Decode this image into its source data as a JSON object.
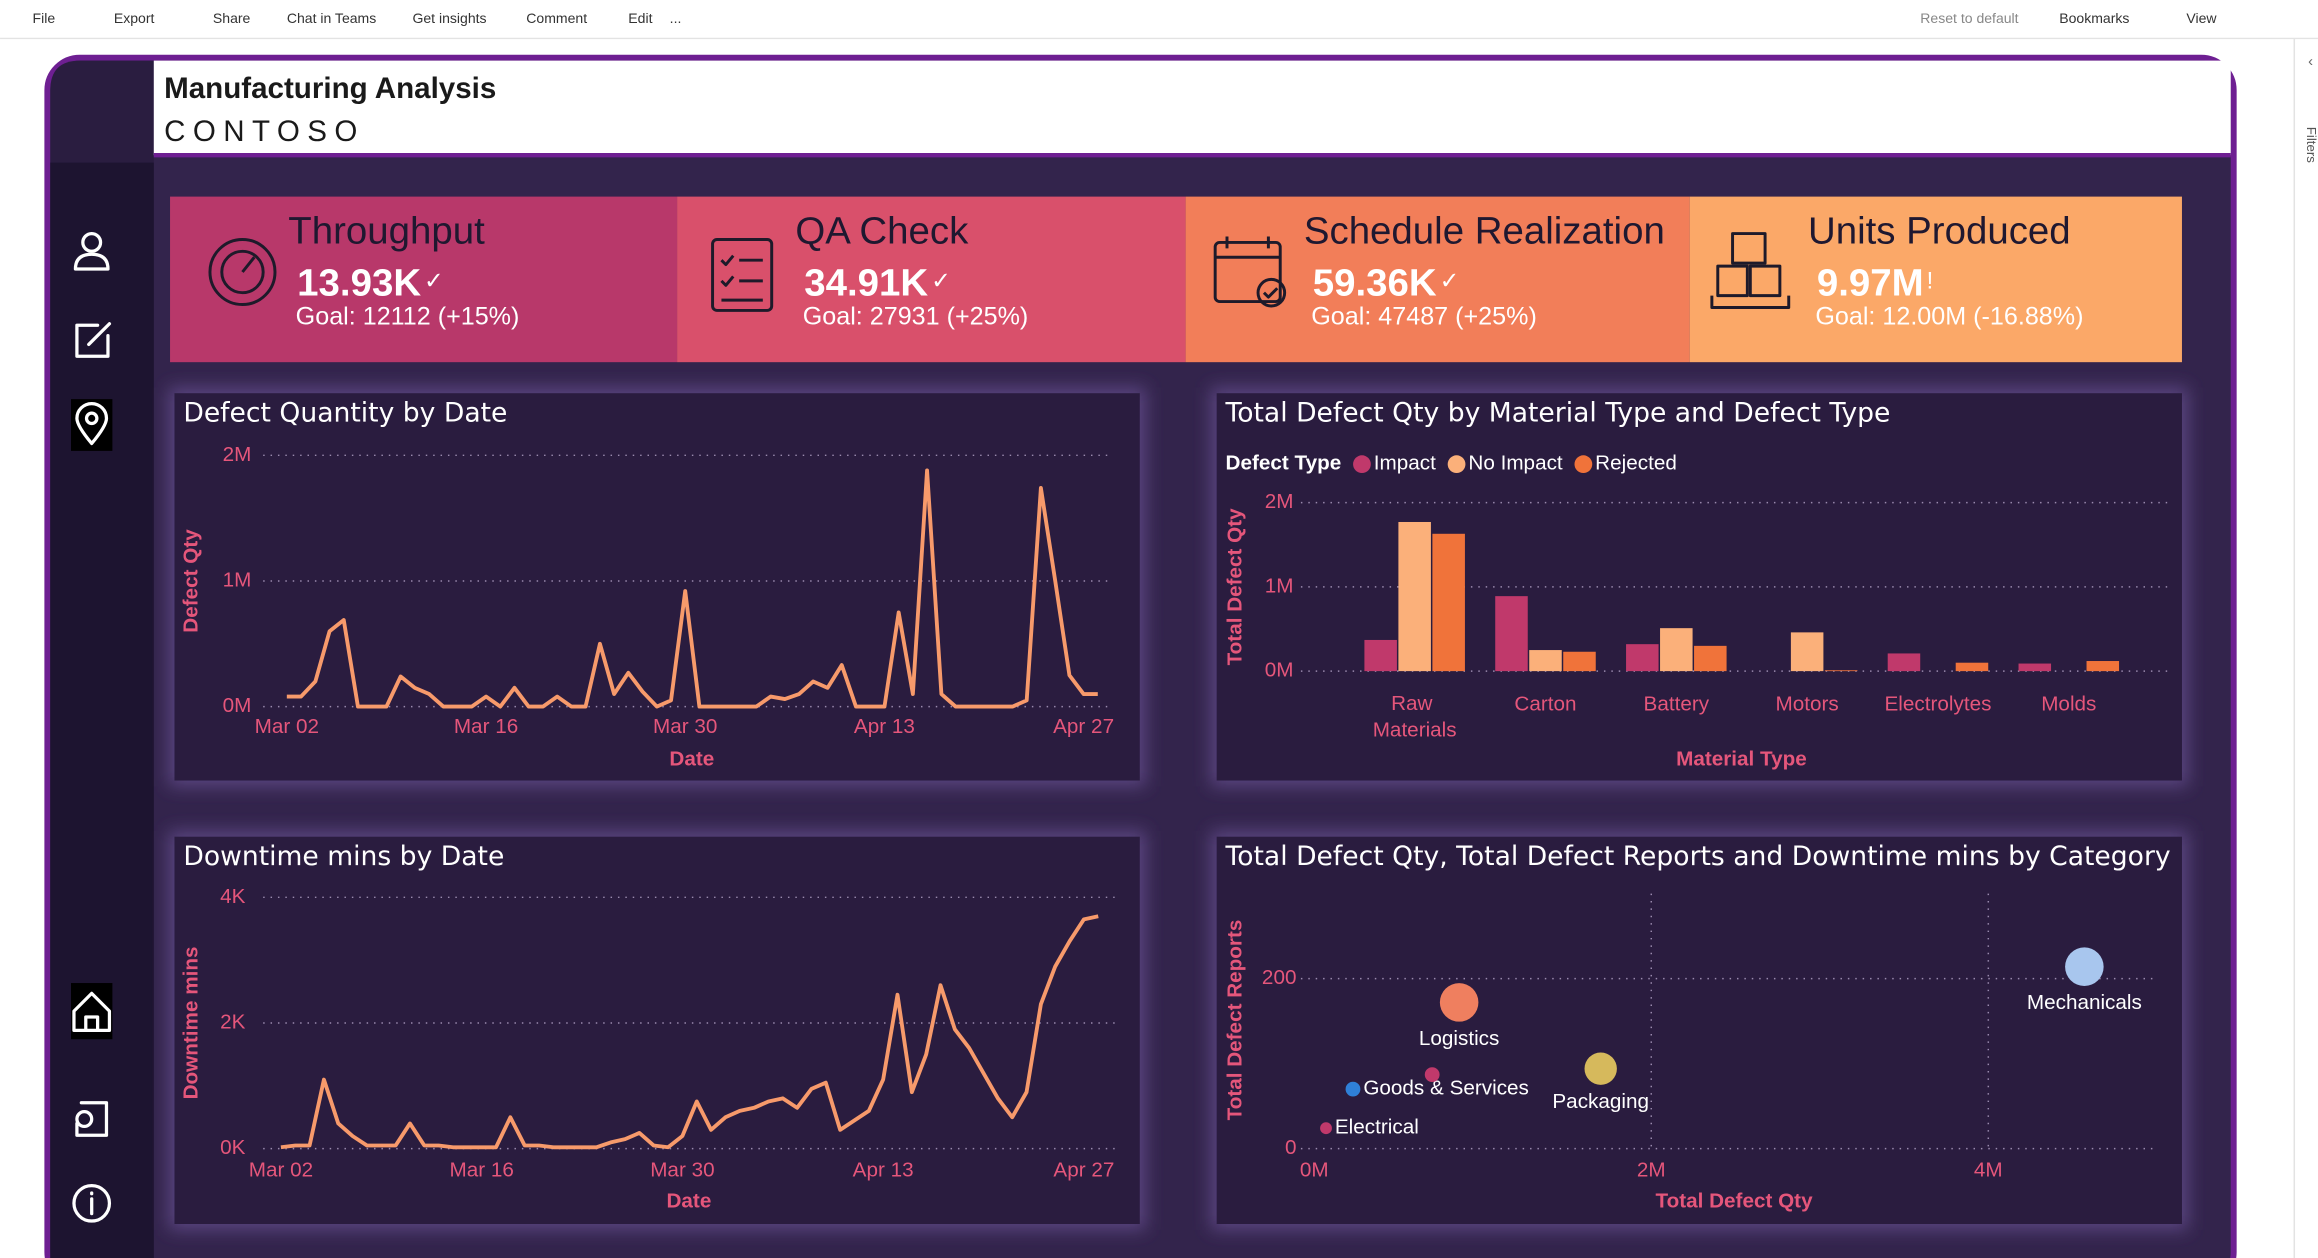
{
  "toolbar": {
    "left": [
      "File",
      "Export",
      "Share",
      "Chat in Teams",
      "Get insights",
      "Comment",
      "Edit",
      "..."
    ],
    "right": [
      "Reset to default",
      "Bookmarks",
      "View"
    ]
  },
  "side_pane": "Filters",
  "header": {
    "title": "Manufacturing Analysis",
    "subtitle": "CONTOSO"
  },
  "kpis": [
    {
      "name": "Throughput",
      "value": "13.93K",
      "status": "✓",
      "goal": "Goal: 12112 (+15%)",
      "color": "#b8386a"
    },
    {
      "name": "QA Check",
      "value": "34.91K",
      "status": "✓",
      "goal": "Goal: 27931 (+25%)",
      "color": "#d9506b"
    },
    {
      "name": "Schedule Realization",
      "value": "59.36K",
      "status": "✓",
      "goal": "Goal: 47487 (+25%)",
      "color": "#f27e59"
    },
    {
      "name": "Units Produced",
      "value": "9.97M",
      "status": "!",
      "goal": "Goal: 12.00M (-16.88%)",
      "color": "#fba868"
    }
  ],
  "chart_data": [
    {
      "type": "line",
      "title": "Defect Quantity by Date",
      "x_label": "Date",
      "y_label": "Defect Qty",
      "categories": [
        "Mar 02",
        null,
        null,
        null,
        null,
        null,
        null,
        null,
        null,
        null,
        null,
        null,
        null,
        null,
        "Mar 16",
        null,
        null,
        null,
        null,
        null,
        null,
        null,
        null,
        null,
        null,
        null,
        null,
        null,
        "Mar 30",
        null,
        null,
        null,
        null,
        null,
        null,
        null,
        null,
        null,
        null,
        null,
        null,
        null,
        "Apr 13",
        null,
        null,
        null,
        null,
        null,
        null,
        null,
        null,
        null,
        null,
        null,
        null,
        null,
        "Apr 27",
        null
      ],
      "values": [
        80000,
        80000,
        200000,
        600000,
        690000,
        0,
        0,
        0,
        240000,
        150000,
        100000,
        0,
        0,
        0,
        80000,
        0,
        150000,
        0,
        0,
        80000,
        0,
        0,
        500000,
        100000,
        270000,
        120000,
        0,
        50000,
        920000,
        0,
        0,
        0,
        0,
        0,
        80000,
        60000,
        100000,
        200000,
        150000,
        330000,
        0,
        0,
        0,
        750000,
        100000,
        1880000,
        100000,
        0,
        0,
        0,
        0,
        0,
        50000,
        1740000,
        1000000,
        250000,
        100000,
        100000
      ],
      "color": "#f79a6b",
      "ylim": [
        0,
        2000000
      ],
      "yticks": [
        {
          "value": 0,
          "label": "0M"
        },
        {
          "value": 1000000,
          "label": "1M"
        },
        {
          "value": 2000000,
          "label": "2M"
        }
      ],
      "grid": true
    },
    {
      "type": "bar",
      "title": "Total Defect Qty by Material Type and Defect Type",
      "x_label": "Material Type",
      "y_label": "Total Defect Qty",
      "legend_title": "Defect Type",
      "legend": "top-left",
      "categories": [
        "Raw Materials",
        "Carton",
        "Battery",
        "Motors",
        "Electrolytes",
        "Molds"
      ],
      "series": [
        {
          "name": "Impact",
          "color": "#c0396b",
          "values": [
            370000,
            890000,
            320000,
            0,
            210000,
            90000
          ]
        },
        {
          "name": "No Impact",
          "color": "#fbb07a",
          "values": [
            1770000,
            250000,
            510000,
            460000,
            0,
            0
          ]
        },
        {
          "name": "Rejected",
          "color": "#f0733a",
          "values": [
            1630000,
            230000,
            300000,
            10000,
            100000,
            120000
          ]
        }
      ],
      "ylim": [
        0,
        2000000
      ],
      "yticks": [
        {
          "value": 0,
          "label": "0M"
        },
        {
          "value": 1000000,
          "label": "1M"
        },
        {
          "value": 2000000,
          "label": "2M"
        }
      ],
      "grid": true
    },
    {
      "type": "line",
      "title": "Downtime mins by Date",
      "x_label": "Date",
      "y_label": "Downtime mins",
      "categories": [
        "Mar 02",
        null,
        null,
        null,
        null,
        null,
        null,
        null,
        null,
        null,
        null,
        null,
        null,
        null,
        "Mar 16",
        null,
        null,
        null,
        null,
        null,
        null,
        null,
        null,
        null,
        null,
        null,
        null,
        null,
        "Mar 30",
        null,
        null,
        null,
        null,
        null,
        null,
        null,
        null,
        null,
        null,
        null,
        null,
        null,
        "Apr 13",
        null,
        null,
        null,
        null,
        null,
        null,
        null,
        null,
        null,
        null,
        null,
        null,
        null,
        "Apr 27",
        null
      ],
      "values": [
        20,
        50,
        50,
        1100,
        400,
        200,
        50,
        50,
        50,
        400,
        50,
        50,
        20,
        20,
        20,
        20,
        500,
        50,
        50,
        20,
        20,
        20,
        20,
        100,
        150,
        250,
        50,
        20,
        200,
        750,
        300,
        500,
        600,
        650,
        750,
        800,
        650,
        950,
        1050,
        300,
        450,
        600,
        1100,
        2450,
        900,
        1500,
        2600,
        1900,
        1600,
        1200,
        800,
        500,
        900,
        2300,
        2900,
        3300,
        3650,
        3700
      ],
      "color": "#f79a6b",
      "ylim": [
        0,
        4000
      ],
      "yticks": [
        {
          "value": 0,
          "label": "0K"
        },
        {
          "value": 2000,
          "label": "2K"
        },
        {
          "value": 4000,
          "label": "4K"
        }
      ],
      "grid": true
    },
    {
      "type": "bubble",
      "title": "Total Defect Qty, Total Defect Reports and Downtime mins by Category",
      "x_label": "Total Defect Qty",
      "y_label": "Total Defect Reports",
      "categories": [
        "Mechanicals",
        "Logistics",
        "Packaging",
        "Goods & Services",
        null,
        "Electrical"
      ],
      "x": [
        4570000,
        860000,
        1700000,
        230000,
        700000,
        70000
      ],
      "values": [
        214,
        172,
        94,
        70,
        87,
        24
      ],
      "sizes": [
        17000,
        17000,
        12000,
        2500,
        2500,
        1600
      ],
      "colors": [
        "#a8c6ee",
        "#ef7f5f",
        "#d6b95c",
        "#2f80d8",
        "#c0396b",
        "#c0396b"
      ],
      "xlim": [
        0,
        5000000
      ],
      "xticks": [
        {
          "value": 0,
          "label": "0M"
        },
        {
          "value": 2000000,
          "label": "2M"
        },
        {
          "value": 4000000,
          "label": "4M"
        }
      ],
      "ylim": [
        0,
        300
      ],
      "yticks": [
        0,
        200
      ],
      "grid": true
    }
  ]
}
